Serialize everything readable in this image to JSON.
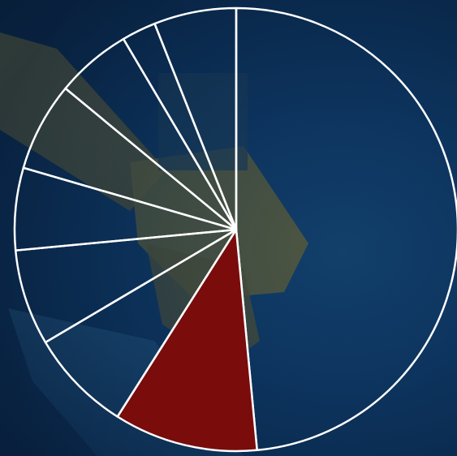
{
  "chart_data": {
    "type": "pie",
    "title": "",
    "start_angle_deg": 0,
    "direction": "clockwise",
    "slices": [
      {
        "value": 48.5,
        "filled": false
      },
      {
        "value": 10.5,
        "filled": true
      },
      {
        "value": 7.5,
        "filled": false
      },
      {
        "value": 7.0,
        "filled": false
      },
      {
        "value": 6.0,
        "filled": false
      },
      {
        "value": 6.5,
        "filled": false
      },
      {
        "value": 5.5,
        "filled": false
      },
      {
        "value": 2.5,
        "filled": false
      },
      {
        "value": 6.0,
        "filled": false
      }
    ],
    "colors": {
      "highlight": "#7a0c0c",
      "stroke": "#ffffff"
    }
  },
  "background": {
    "description_icon": "robot-arm-photo"
  }
}
